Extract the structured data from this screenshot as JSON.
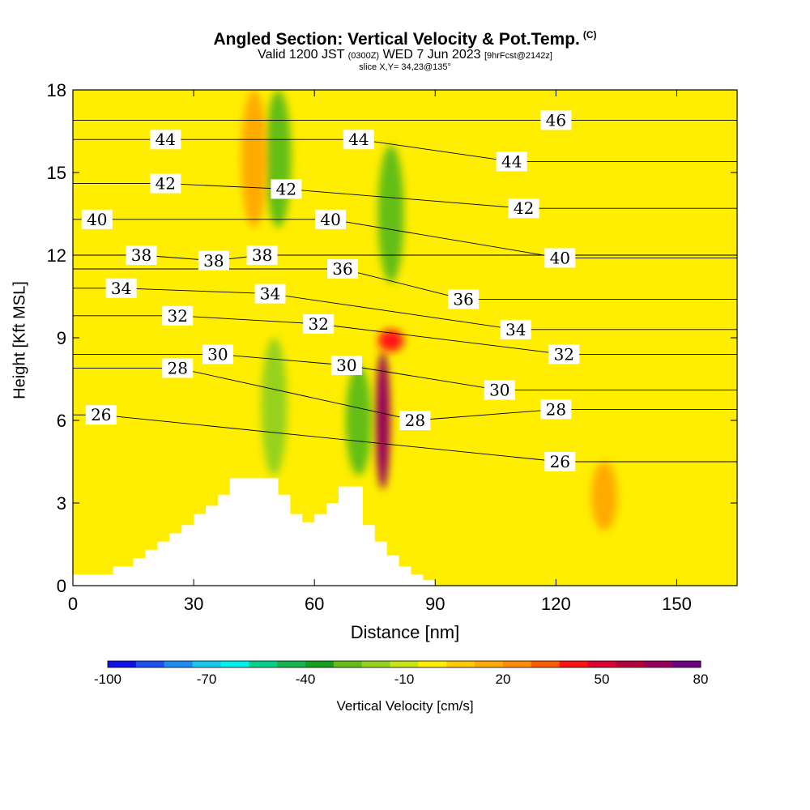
{
  "header": {
    "title": "Angled Section: Vertical Velocity & Pot.Temp.",
    "copyright": "(C)",
    "valid_prefix": "Valid 1200 JST",
    "valid_utc": "(0300Z)",
    "valid_date": "WED 7 Jun 2023",
    "forecast": "[9hrFcst@2142z]",
    "slice": "slice X,Y= 34,23@135°"
  },
  "chart_data": {
    "type": "heatmap",
    "title": "Angled Section: Vertical Velocity & Pot.Temp.",
    "xlabel": "Distance [nm]",
    "ylabel": "Height [Kft MSL]",
    "xlim": [
      0,
      165
    ],
    "ylim": [
      0,
      18
    ],
    "xticks": [
      0,
      30,
      60,
      90,
      120,
      150
    ],
    "yticks": [
      0,
      3,
      6,
      9,
      12,
      15,
      18
    ],
    "colorbar": {
      "label": "Vertical Velocity [cm/s]",
      "tick_labels": [
        -100,
        -70,
        -40,
        -10,
        20,
        50,
        80
      ],
      "colors": [
        "#1010e8",
        "#1e50f0",
        "#1e8cf0",
        "#14c8f0",
        "#00f0f0",
        "#00d28c",
        "#14b450",
        "#14a01e",
        "#64be14",
        "#96d21e",
        "#c8e614",
        "#ffee00",
        "#ffc800",
        "#ffaa00",
        "#ff8c00",
        "#ff5a00",
        "#ff1414",
        "#dc0032",
        "#b4003c",
        "#96005a",
        "#6e0082"
      ]
    },
    "velocity_features": [
      {
        "name": "updraft core",
        "x": 77,
        "y_range": [
          3.5,
          8.5
        ],
        "value": 70
      },
      {
        "name": "updraft upper",
        "x": 79,
        "y_range": [
          8.5,
          9.3
        ],
        "value": 40
      },
      {
        "name": "downdraft",
        "x": 50,
        "y_range": [
          4,
          9
        ],
        "value": -20
      },
      {
        "name": "downdraft",
        "x": 71,
        "y_range": [
          4,
          8
        ],
        "value": -25
      },
      {
        "name": "downdraft upper",
        "x": 51,
        "y_range": [
          13,
          18
        ],
        "value": -25
      },
      {
        "name": "downdraft upper",
        "x": 79,
        "y_range": [
          11,
          16
        ],
        "value": -25
      },
      {
        "name": "updraft upper",
        "x": 45,
        "y_range": [
          13,
          18
        ],
        "value": 20
      },
      {
        "name": "updraft",
        "x": 132,
        "y_range": [
          2,
          4.5
        ],
        "value": 20
      }
    ],
    "isentropes": [
      {
        "theta": 26,
        "labels": [
          [
            7,
            6.2
          ],
          [
            121,
            4.5
          ]
        ]
      },
      {
        "theta": 28,
        "labels": [
          [
            26,
            7.9
          ],
          [
            85,
            6.0
          ],
          [
            120,
            6.4
          ]
        ]
      },
      {
        "theta": 30,
        "labels": [
          [
            36,
            8.4
          ],
          [
            68,
            8.0
          ],
          [
            106,
            7.1
          ]
        ]
      },
      {
        "theta": 32,
        "labels": [
          [
            26,
            9.8
          ],
          [
            61,
            9.5
          ],
          [
            122,
            8.4
          ]
        ]
      },
      {
        "theta": 34,
        "labels": [
          [
            12,
            10.8
          ],
          [
            49,
            10.6
          ],
          [
            110,
            9.3
          ]
        ]
      },
      {
        "theta": 36,
        "labels": [
          [
            67,
            11.5
          ],
          [
            97,
            10.4
          ]
        ]
      },
      {
        "theta": 38,
        "labels": [
          [
            17,
            12.0
          ],
          [
            35,
            11.8
          ],
          [
            47,
            12.0
          ]
        ]
      },
      {
        "theta": 40,
        "labels": [
          [
            6,
            13.3
          ],
          [
            64,
            13.3
          ],
          [
            121,
            11.9
          ]
        ]
      },
      {
        "theta": 42,
        "labels": [
          [
            23,
            14.6
          ],
          [
            53,
            14.4
          ],
          [
            112,
            13.7
          ]
        ]
      },
      {
        "theta": 44,
        "labels": [
          [
            23,
            16.2
          ],
          [
            71,
            16.2
          ],
          [
            109,
            15.4
          ]
        ]
      },
      {
        "theta": 46,
        "labels": [
          [
            120,
            16.9
          ]
        ]
      }
    ],
    "terrain_x": [
      0,
      10,
      15,
      18,
      21,
      24,
      27,
      30,
      33,
      36,
      39,
      42,
      45,
      48,
      51,
      54,
      57,
      60,
      63,
      66,
      69,
      72,
      75,
      78,
      81,
      84,
      87,
      90
    ],
    "terrain_y": [
      0.4,
      0.7,
      1.0,
      1.3,
      1.6,
      1.9,
      2.2,
      2.6,
      2.9,
      3.3,
      3.9,
      3.9,
      3.9,
      3.9,
      3.3,
      2.6,
      2.3,
      2.6,
      3.0,
      3.6,
      3.6,
      2.2,
      1.6,
      1.1,
      0.7,
      0.4,
      0.2,
      0.0
    ]
  }
}
